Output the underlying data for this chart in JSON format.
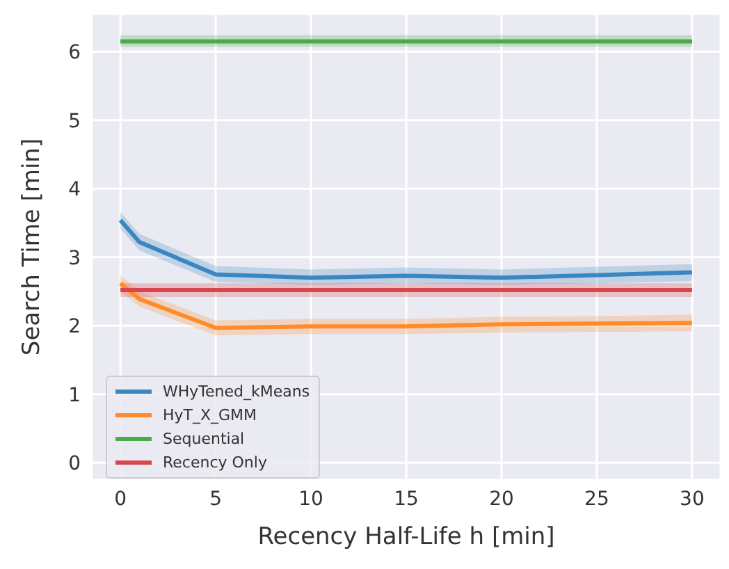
{
  "chart_data": {
    "type": "line",
    "xlabel": "Recency Half-Life h [min]",
    "ylabel": "Search Time [min]",
    "x": [
      0,
      1,
      5,
      10,
      15,
      20,
      25,
      30
    ],
    "series": [
      {
        "name": "WHyTened_kMeans",
        "color": "#3a86c0",
        "values": [
          3.54,
          3.22,
          2.75,
          2.7,
          2.73,
          2.7,
          2.74,
          2.78
        ],
        "lower": [
          3.42,
          3.1,
          2.64,
          2.6,
          2.62,
          2.6,
          2.62,
          2.65
        ],
        "upper": [
          3.66,
          3.34,
          2.87,
          2.82,
          2.85,
          2.82,
          2.86,
          2.9
        ]
      },
      {
        "name": "HyT_X_GMM",
        "color": "#ff8c2a",
        "values": [
          2.62,
          2.39,
          1.97,
          1.99,
          1.99,
          2.02,
          2.03,
          2.04
        ],
        "lower": [
          2.5,
          2.28,
          1.86,
          1.88,
          1.88,
          1.9,
          1.91,
          1.92
        ],
        "upper": [
          2.74,
          2.5,
          2.08,
          2.1,
          2.1,
          2.13,
          2.14,
          2.16
        ]
      },
      {
        "name": "Sequential",
        "color": "#49ab49",
        "values": [
          6.15,
          6.15,
          6.15,
          6.15,
          6.15,
          6.15,
          6.15,
          6.15
        ],
        "lower": [
          6.07,
          6.07,
          6.07,
          6.07,
          6.07,
          6.07,
          6.07,
          6.07
        ],
        "upper": [
          6.24,
          6.24,
          6.24,
          6.24,
          6.24,
          6.24,
          6.24,
          6.24
        ]
      },
      {
        "name": "Recency Only",
        "color": "#d9454a",
        "values": [
          2.52,
          2.52,
          2.52,
          2.52,
          2.52,
          2.52,
          2.52,
          2.52
        ],
        "lower": [
          2.42,
          2.42,
          2.42,
          2.42,
          2.42,
          2.42,
          2.42,
          2.42
        ],
        "upper": [
          2.62,
          2.62,
          2.62,
          2.62,
          2.62,
          2.62,
          2.62,
          2.62
        ]
      }
    ],
    "xlim": [
      -1.5,
      31.5
    ],
    "xticks": [
      0,
      5,
      10,
      15,
      20,
      25,
      30
    ],
    "ylim": [
      -0.25,
      6.55
    ],
    "yticks": [
      0,
      1,
      2,
      3,
      4,
      5,
      6
    ],
    "grid": true,
    "legend": "bottom left",
    "marker": "none",
    "line_style": "solid"
  }
}
